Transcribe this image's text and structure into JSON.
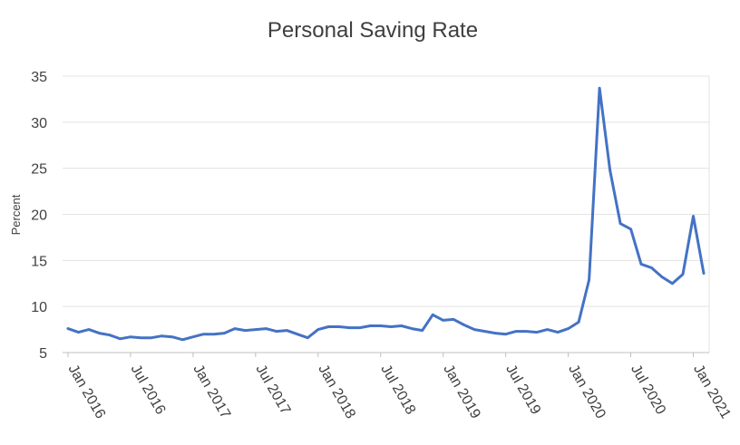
{
  "chart_data": {
    "type": "line",
    "title": "Personal Saving Rate",
    "xlabel": "",
    "ylabel": "Percent",
    "ylim": [
      5,
      35
    ],
    "yticks": [
      5,
      10,
      15,
      20,
      25,
      30,
      35
    ],
    "xtick_labels": [
      "Jan 2016",
      "Jul 2016",
      "Jan 2017",
      "Jul 2017",
      "Jan 2018",
      "Jul 2018",
      "Jan 2019",
      "Jul 2019",
      "Jan 2020",
      "Jul 2020",
      "Jan 2021"
    ],
    "grid": true,
    "legend": "none",
    "color": "#4472C4",
    "x": [
      "2016-01",
      "2016-02",
      "2016-03",
      "2016-04",
      "2016-05",
      "2016-06",
      "2016-07",
      "2016-08",
      "2016-09",
      "2016-10",
      "2016-11",
      "2016-12",
      "2017-01",
      "2017-02",
      "2017-03",
      "2017-04",
      "2017-05",
      "2017-06",
      "2017-07",
      "2017-08",
      "2017-09",
      "2017-10",
      "2017-11",
      "2017-12",
      "2018-01",
      "2018-02",
      "2018-03",
      "2018-04",
      "2018-05",
      "2018-06",
      "2018-07",
      "2018-08",
      "2018-09",
      "2018-10",
      "2018-11",
      "2018-12",
      "2019-01",
      "2019-02",
      "2019-03",
      "2019-04",
      "2019-05",
      "2019-06",
      "2019-07",
      "2019-08",
      "2019-09",
      "2019-10",
      "2019-11",
      "2019-12",
      "2020-01",
      "2020-02",
      "2020-03",
      "2020-04",
      "2020-05",
      "2020-06",
      "2020-07",
      "2020-08",
      "2020-09",
      "2020-10",
      "2020-11",
      "2020-12",
      "2021-01",
      "2021-02"
    ],
    "values": [
      7.6,
      7.2,
      7.5,
      7.1,
      6.9,
      6.5,
      6.7,
      6.6,
      6.6,
      6.8,
      6.7,
      6.4,
      6.7,
      7.0,
      7.0,
      7.1,
      7.6,
      7.4,
      7.5,
      7.6,
      7.3,
      7.4,
      7.0,
      6.6,
      7.5,
      7.8,
      7.8,
      7.7,
      7.7,
      7.9,
      7.9,
      7.8,
      7.9,
      7.6,
      7.4,
      9.1,
      8.5,
      8.6,
      8.0,
      7.5,
      7.3,
      7.1,
      7.0,
      7.3,
      7.3,
      7.2,
      7.5,
      7.2,
      7.6,
      8.3,
      12.9,
      33.7,
      24.8,
      19.0,
      18.4,
      14.6,
      14.2,
      13.2,
      12.5,
      13.5,
      19.8,
      13.6
    ]
  }
}
